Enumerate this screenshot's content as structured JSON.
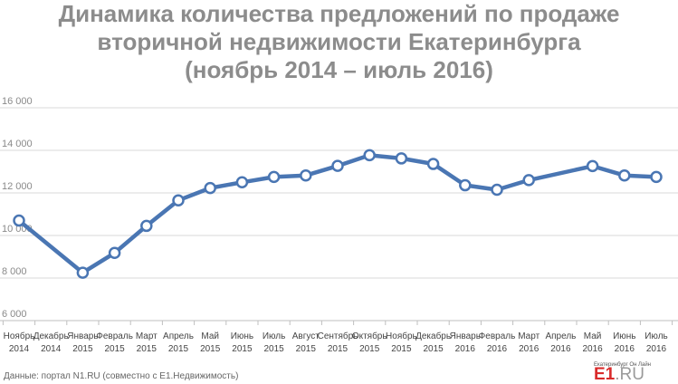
{
  "title_lines": [
    "Динамика количества предложений по продаже",
    "вторичной недвижимости Екатеринбурга",
    "(ноябрь 2014 – июль 2016)"
  ],
  "source_note": "Данные: портал N1.RU (совместно с E1.Недвижимость)",
  "logo": {
    "small": "Екатеринбург Он Лайн",
    "main": "E1",
    "suffix": ".RU"
  },
  "colors": {
    "line": "#4a76b3",
    "marker_fill": "#ffffff",
    "grid": "#d9d9d9",
    "title": "#8c8c8c",
    "logo_red": "#d92b2b"
  },
  "chart_data": {
    "type": "line",
    "title": "Динамика количества предложений по продаже вторичной недвижимости Екатеринбурга (ноябрь 2014 – июль 2016)",
    "ylim": [
      6000,
      16000
    ],
    "yticks": [
      6000,
      8000,
      10000,
      12000,
      14000,
      16000
    ],
    "ytick_labels": [
      "6 000",
      "8 000",
      "10 000",
      "12 000",
      "14 000",
      "16 000"
    ],
    "grid": true,
    "categories": [
      [
        "Ноябрь",
        "2014"
      ],
      [
        "Декабрь",
        "2014"
      ],
      [
        "Январь",
        "2015"
      ],
      [
        "Февраль",
        "2015"
      ],
      [
        "Март",
        "2015"
      ],
      [
        "Апрель",
        "2015"
      ],
      [
        "Май",
        "2015"
      ],
      [
        "Июнь",
        "2015"
      ],
      [
        "Июль",
        "2015"
      ],
      [
        "Август",
        "2015"
      ],
      [
        "Сентябрь",
        "2015"
      ],
      [
        "Октябрь",
        "2015"
      ],
      [
        "Ноябрь",
        "2015"
      ],
      [
        "Декабрь",
        "2015"
      ],
      [
        "Январь",
        "2016"
      ],
      [
        "Февраль",
        "2016"
      ],
      [
        "Март",
        "2016"
      ],
      [
        "Апрель",
        "2016"
      ],
      [
        "Май",
        "2016"
      ],
      [
        "Июнь",
        "2016"
      ],
      [
        "Июль",
        "2016"
      ]
    ],
    "series": [
      {
        "values": [
          10700,
          null,
          8250,
          9180,
          10450,
          11650,
          12230,
          12500,
          12750,
          12820,
          13270,
          13770,
          13620,
          13360,
          12360,
          12150,
          12600,
          null,
          13260,
          12820,
          12750
        ]
      }
    ]
  }
}
